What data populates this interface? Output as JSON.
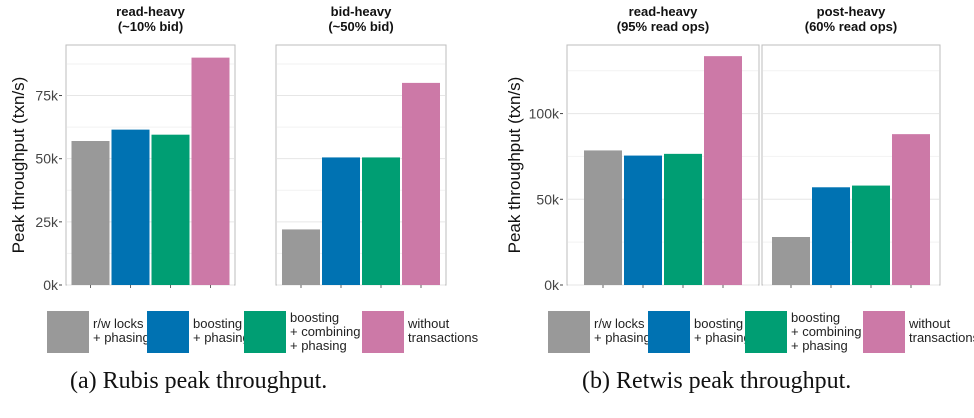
{
  "colors": {
    "rw_locks": "#999999",
    "boosting": "#0072B2",
    "combining": "#009E73",
    "without": "#CC79A7",
    "grid": "#e6e6e6",
    "panel_border": "#bdbdbd"
  },
  "captions": {
    "a": "(a)  Rubis peak throughput.",
    "b": "(b)  Retwis peak throughput."
  },
  "legend": [
    {
      "key": "rw_locks",
      "lines": [
        "r/w locks",
        "+ phasing"
      ]
    },
    {
      "key": "boosting",
      "lines": [
        "boosting",
        "+ phasing"
      ]
    },
    {
      "key": "combining",
      "lines": [
        "boosting",
        "+ combining",
        "+ phasing"
      ]
    },
    {
      "key": "without",
      "lines": [
        "without",
        "transactions"
      ]
    }
  ],
  "chart_data": [
    {
      "type": "bar",
      "ylabel": "Peak throughput (txn/s)",
      "ylim": [
        0,
        95000
      ],
      "yticks": [
        0,
        25000,
        50000,
        75000
      ],
      "yticklabels": [
        "0k",
        "25k",
        "50k",
        "75k"
      ],
      "grid": true,
      "legend_position": "bottom",
      "series_names": [
        "r/w locks + phasing",
        "boosting + phasing",
        "boosting + combining + phasing",
        "without transactions"
      ],
      "panels": [
        {
          "title_lines": [
            "read-heavy",
            "(~10% bid)"
          ],
          "values": [
            57000,
            61500,
            59500,
            90000
          ]
        },
        {
          "title_lines": [
            "bid-heavy",
            "(~50% bid)"
          ],
          "values": [
            22000,
            50500,
            50500,
            80000
          ]
        }
      ]
    },
    {
      "type": "bar",
      "ylabel": "Peak throughput (txn/s)",
      "ylim": [
        0,
        140000
      ],
      "yticks": [
        0,
        50000,
        100000
      ],
      "yticklabels": [
        "0k",
        "50k",
        "100k"
      ],
      "grid": true,
      "legend_position": "bottom",
      "series_names": [
        "r/w locks + phasing",
        "boosting + phasing",
        "boosting + combining + phasing",
        "without transactions"
      ],
      "panels": [
        {
          "title_lines": [
            "read-heavy",
            "(95% read ops)"
          ],
          "values": [
            78500,
            75500,
            76500,
            133500
          ]
        },
        {
          "title_lines": [
            "post-heavy",
            "(60% read ops)"
          ],
          "values": [
            28000,
            57000,
            58000,
            88000
          ]
        }
      ]
    }
  ]
}
